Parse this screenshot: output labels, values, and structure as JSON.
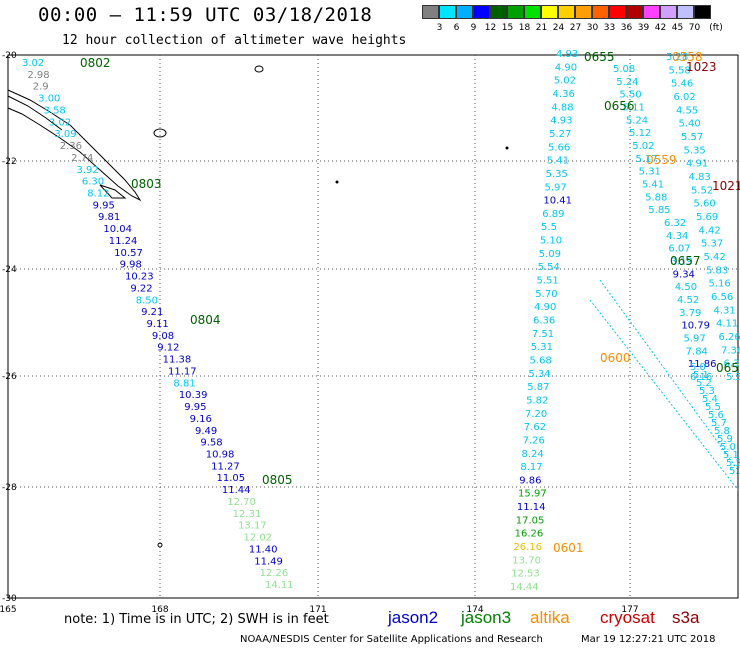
{
  "header": {
    "title": "00:00 – 11:59 UTC 03/18/2018",
    "subtitle": "12 hour collection of altimeter wave heights"
  },
  "colorbar": {
    "unit": "(ft)",
    "labels": [
      "3",
      "6",
      "9",
      "12",
      "15",
      "18",
      "21",
      "24",
      "27",
      "30",
      "33",
      "36",
      "39",
      "42",
      "45",
      "70"
    ],
    "colors": [
      "#808080",
      "#00e5ff",
      "#00b0ff",
      "#0000ff",
      "#006000",
      "#00a000",
      "#00e000",
      "#ffff00",
      "#ffd000",
      "#ffa000",
      "#ff6000",
      "#ff0000",
      "#b00000",
      "#ff40ff",
      "#d0a0ff",
      "#c0c0ff",
      "#000000"
    ]
  },
  "axes": {
    "x_ticks": [
      "165",
      "168",
      "171",
      "174",
      "177"
    ],
    "y_ticks": [
      "-20",
      "-22",
      "-24",
      "-26",
      "-28",
      "-30"
    ]
  },
  "tracks": [
    {
      "series": "jason3-swath-1",
      "labels": [
        {
          "t": "0802",
          "c": "#006000"
        },
        {
          "t": "0803",
          "c": "#006000"
        },
        {
          "t": "0804",
          "c": "#006000"
        },
        {
          "t": "0805",
          "c": "#006000"
        }
      ]
    }
  ],
  "values": {
    "track_a": [
      "3.02",
      "2.98",
      "2.9",
      "3.00",
      "3.58",
      "3.02",
      "3.09",
      "2.36",
      "2.74",
      "3.92",
      "6.30",
      "8.12",
      "9.95",
      "9.81",
      "10.04",
      "11.24",
      "10.57",
      "9.98",
      "10.23",
      "9.22",
      "8.50",
      "9.21",
      "9.11",
      "9.08",
      "9.12",
      "11.38",
      "11.17",
      "8.81",
      "10.39",
      "9.95",
      "9.16",
      "9.49",
      "9.58",
      "10.98",
      "11.27",
      "11.05",
      "11.44",
      "12.70",
      "12.31",
      "13.17",
      "12.02",
      "11.40",
      "11.49",
      "12.26",
      "14.11"
    ],
    "track_b": [
      "4.93",
      "4.90",
      "5.02",
      "4.36",
      "4.88",
      "4.93",
      "5.27",
      "5.66",
      "5.41",
      "5.35",
      "5.97",
      "10.41",
      "6.89",
      "5.5",
      "5.10",
      "5.09",
      "5.54",
      "5.51",
      "5.70",
      "4.90",
      "6.36",
      "7.51",
      "5.31",
      "5.68",
      "5.34",
      "5.87",
      "5.82",
      "7.20",
      "7.62",
      "7.26",
      "8.24",
      "8.17",
      "9.86",
      "15.97",
      "11.14",
      "17.05",
      "16.26",
      "26.16",
      "13.70",
      "12.53",
      "14.44"
    ],
    "track_c": [
      "5.28",
      "5.58",
      "5.46",
      "6.02",
      "4.55",
      "5.40",
      "5.57",
      "5.35",
      "4.91",
      "4.83",
      "5.52",
      "5.60",
      "5.69",
      "4.42",
      "5.37",
      "5.42",
      "5.83",
      "5.16",
      "6.56",
      "4.31",
      "4.11",
      "6.26",
      "7.36",
      "6.35",
      "5.5"
    ],
    "track_d": [
      "5.08",
      "5.24",
      "5.50",
      "5.11",
      "5.24",
      "5.12",
      "5.02",
      "5.17",
      "5.31",
      "5.41",
      "5.88",
      "5.85",
      "6.32",
      "4.34",
      "6.07",
      "3.19",
      "9.34",
      "4.50",
      "4.52",
      "3.79",
      "10.79",
      "5.97",
      "7.84",
      "11.86",
      "6.16"
    ]
  },
  "time_labels": [
    {
      "t": "0802",
      "c": "#006000"
    },
    {
      "t": "0803",
      "c": "#006000"
    },
    {
      "t": "0804",
      "c": "#006000"
    },
    {
      "t": "0805",
      "c": "#006000"
    },
    {
      "t": "0655",
      "c": "#006000"
    },
    {
      "t": "0656",
      "c": "#006000"
    },
    {
      "t": "0657",
      "c": "#006000"
    },
    {
      "t": "065",
      "c": "#006000"
    },
    {
      "t": "0558",
      "c": "#ff8c00"
    },
    {
      "t": "0559",
      "c": "#ff8c00"
    },
    {
      "t": "0600",
      "c": "#ff8c00"
    },
    {
      "t": "0601",
      "c": "#ff8c00"
    },
    {
      "t": "1023",
      "c": "#8b0000"
    },
    {
      "t": "1021",
      "c": "#8b0000"
    }
  ],
  "note": {
    "text": "note: 1) Time is in UTC; 2) SWH is in feet"
  },
  "legend": [
    {
      "name": "jason2",
      "color": "#0000cc"
    },
    {
      "name": "jason3",
      "color": "#008000"
    },
    {
      "name": "altika",
      "color": "#ff8c00"
    },
    {
      "name": "cryosat",
      "color": "#cc0000"
    },
    {
      "name": "s3a",
      "color": "#8b0000"
    }
  ],
  "footer": {
    "credit": "NOAA/NESDIS Center for Satellite Applications and Research",
    "stamp": "Mar 19 12:27:21 UTC 2018"
  }
}
